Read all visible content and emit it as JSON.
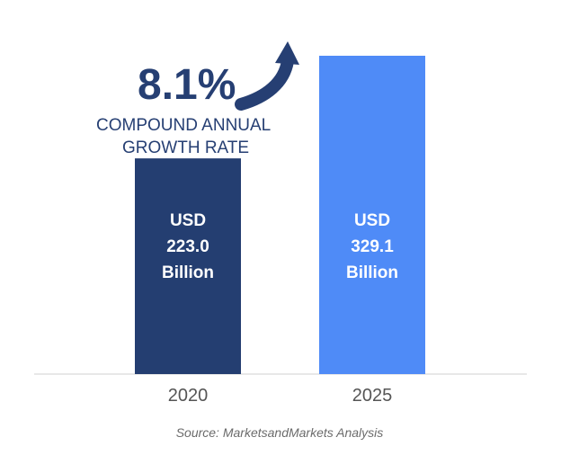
{
  "chart_data": {
    "type": "bar",
    "categories": [
      "2020",
      "2025"
    ],
    "values": [
      223.0,
      329.1
    ],
    "bar_labels": [
      [
        "USD",
        "223.0",
        "Billion"
      ],
      [
        "USD",
        "329.1",
        "Billion"
      ]
    ],
    "colors": [
      "#243e71",
      "#4f8bf7"
    ],
    "ylim": [
      0,
      329.1
    ],
    "grid": false,
    "legend": "none"
  },
  "annotation": {
    "value": "8.1%",
    "caption_line1": "COMPOUND ANNUAL",
    "caption_line2": "GROWTH RATE",
    "color": "#263f73",
    "icon": "arrow-up-right-icon"
  },
  "source": "Source: MarketsandMarkets Analysis"
}
